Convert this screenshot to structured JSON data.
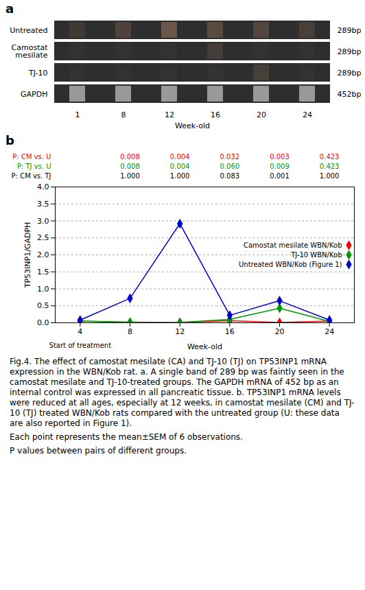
{
  "chart_data": [
    {
      "type": "gel",
      "title": "a",
      "xlabel": "Week-old",
      "categories": [
        1,
        8,
        12,
        16,
        20,
        24
      ],
      "rows": [
        {
          "name": "Untreated",
          "bp": "289bp",
          "color": "#c09070",
          "values": [
            0.12,
            0.22,
            0.42,
            0.3,
            0.25,
            0.18
          ]
        },
        {
          "name": "Camostat\nmesilate",
          "bp": "289bp",
          "color": "#c09070",
          "values": [
            0.04,
            0.04,
            0.04,
            0.15,
            0.04,
            0.04
          ]
        },
        {
          "name": "TJ-10",
          "bp": "289bp",
          "color": "#c09070",
          "values": [
            0.04,
            0.04,
            0.04,
            0.04,
            0.18,
            0.04
          ]
        },
        {
          "name": "GAPDH",
          "bp": "452bp",
          "color": "#c8c8c8",
          "values": [
            0.7,
            0.7,
            0.7,
            0.7,
            0.7,
            0.7
          ]
        }
      ]
    },
    {
      "type": "line",
      "title": "b",
      "xlabel": "Week-old",
      "ylabel": "TP53INP1/GADPH",
      "x": [
        4,
        8,
        12,
        16,
        20,
        24
      ],
      "xlim": [
        2,
        26
      ],
      "xticks": [
        4,
        8,
        12,
        16,
        20,
        24
      ],
      "ylim": [
        0,
        4.0
      ],
      "yticks": [
        {
          "value": 0.0,
          "label": "0.0"
        },
        {
          "value": 0.5,
          "label": "0.5"
        },
        {
          "value": 1.0,
          "label": "1.0"
        },
        {
          "value": 1.5,
          "label": "1.5"
        },
        {
          "value": 2.0,
          "label": "2.0"
        },
        {
          "value": 2.5,
          "label": "2.5"
        },
        {
          "value": 3.0,
          "label": "3.0"
        },
        {
          "value": 3.5,
          "label": "3.5"
        },
        {
          "value": 4.0,
          "label": "4.0"
        }
      ],
      "grid": true,
      "legend": "right",
      "series": [
        {
          "name": "Camostat mesilate WBN/Kob",
          "color": "#FF0000",
          "marker": "diamond",
          "values": [
            0.05,
            0.01,
            0.01,
            0.06,
            0.01,
            0.05
          ],
          "yerr": [
            0.02,
            0.01,
            0.01,
            0.03,
            0.01,
            0.02
          ]
        },
        {
          "name": "TJ-10 WBN/Kob",
          "color": "#009900",
          "marker": "diamond",
          "values": [
            0.05,
            0.02,
            0.01,
            0.1,
            0.43,
            0.04
          ],
          "yerr": [
            0.02,
            0.01,
            0.01,
            0.03,
            0.04,
            0.02
          ]
        },
        {
          "name": "Untreated WBN/Kob (Figure 1)",
          "color": "#0000CC",
          "marker": "diamond",
          "values": [
            0.08,
            0.72,
            2.92,
            0.22,
            0.65,
            0.08
          ],
          "yerr": [
            0.02,
            0.04,
            0.1,
            0.03,
            0.04,
            0.02
          ]
        }
      ],
      "annotations": [
        {
          "text": "Start of treatment",
          "x": 4
        }
      ],
      "p_values": {
        "x": [
          8,
          12,
          16,
          20,
          24
        ],
        "rows": [
          {
            "name": "P: CM vs. U",
            "color": "#FF0000",
            "values": [
              0.008,
              0.004,
              0.032,
              0.003,
              0.423
            ],
            "value_labels": [
              "0.008",
              "0.004",
              "0.032",
              "0.003",
              "0.423"
            ]
          },
          {
            "name": "P: TJ vs. U",
            "color": "#009900",
            "values": [
              0.008,
              0.004,
              0.06,
              0.009,
              0.423
            ],
            "value_labels": [
              "0.008",
              "0.004",
              "0.060",
              "0.009",
              "0.423"
            ]
          },
          {
            "name": "P: CM vs. TJ",
            "color": "#000000",
            "values": [
              1.0,
              1.0,
              0.083,
              0.001,
              1.0
            ],
            "value_labels": [
              "1.000",
              "1.000",
              "0.083",
              "0.001",
              "1.000"
            ]
          }
        ]
      }
    }
  ],
  "caption": [
    "Fig.4. The effect of camostat mesilate (CA) and TJ-10 (TJ) on TP53INP1 mRNA expression in the WBN/Kob rat. a. A single band of 289 bp was faintly seen in the camostat  mesilate  and  TJ-10-treated  groups.  The  GAPDH mRNA of 452 bp as an internal control was expressed in all pancreatic tissue. b. TP53INP1 mRNA levels were reduced at all ages, especially at 12 weeks, in camostat mesilate (CM) and TJ-10 (TJ) treated WBN/Kob rats compared with the untreated group (U: these data are also reported in Figure 1).",
    "Each point represents the mean±SEM of 6 observations.",
    "P values between pairs of different groups."
  ]
}
